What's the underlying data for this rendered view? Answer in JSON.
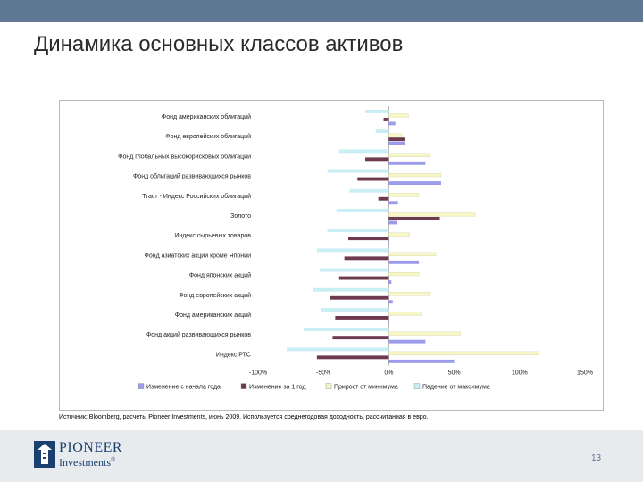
{
  "slide": {
    "title": "Динамика основных классов активов",
    "source": "Источник: Bloomberg, расчеты Pioneer Investments, июнь 2009. Используется среднегодовая доходность, рассчитанная в евро.",
    "page_number": "13",
    "logo_line1": "PIONEER",
    "logo_line2": "Investments",
    "logo_mark": "®"
  },
  "colors": {
    "topbar": "#5e7793",
    "series": [
      "#9c9cea",
      "#6e3a4f",
      "#f6f6c6",
      "#c9eef4"
    ]
  },
  "chart_data": {
    "type": "bar",
    "orientation": "horizontal",
    "title": "",
    "categories": [
      "Фонд американских облигаций",
      "Фонд европейских облигаций",
      "Фонд глобальных высокорисковых облигаций",
      "Фонд облигаций развивающихся рынков",
      "Тгаст - Индекс Российских облигаций",
      "Золото",
      "Индекс сырьевых товаров",
      "Фонд азиатских акций кроме Японии",
      "Фонд японских акций",
      "Фонд европейских акций",
      "Фонд американских акций",
      "Фонд акций развивающихся рынков",
      "Индекс РТС"
    ],
    "series": [
      {
        "name": "Изменение с начала года",
        "values": [
          5,
          12,
          28,
          40,
          7,
          6,
          0,
          23,
          2,
          3,
          0,
          28,
          50
        ]
      },
      {
        "name": "Изменение за 1 год",
        "values": [
          -4,
          12,
          -18,
          -24,
          -8,
          39,
          -31,
          -34,
          -38,
          -45,
          -41,
          -43,
          -55
        ]
      },
      {
        "name": "Прирост от минимума",
        "values": [
          15,
          10,
          32,
          40,
          23,
          66,
          16,
          36,
          23,
          32,
          25,
          55,
          115
        ]
      },
      {
        "name": "Падение от максимума",
        "values": [
          -18,
          -10,
          -38,
          -47,
          -30,
          -40,
          -47,
          -55,
          -53,
          -58,
          -52,
          -65,
          -78
        ]
      }
    ],
    "xlim": [
      -100,
      150
    ],
    "xticks": [
      "-100%",
      "-50%",
      "0%",
      "50%",
      "100%",
      "150%"
    ],
    "xtick_values": [
      -100,
      -50,
      0,
      50,
      100,
      150
    ],
    "legend_position": "bottom",
    "grid": false
  }
}
